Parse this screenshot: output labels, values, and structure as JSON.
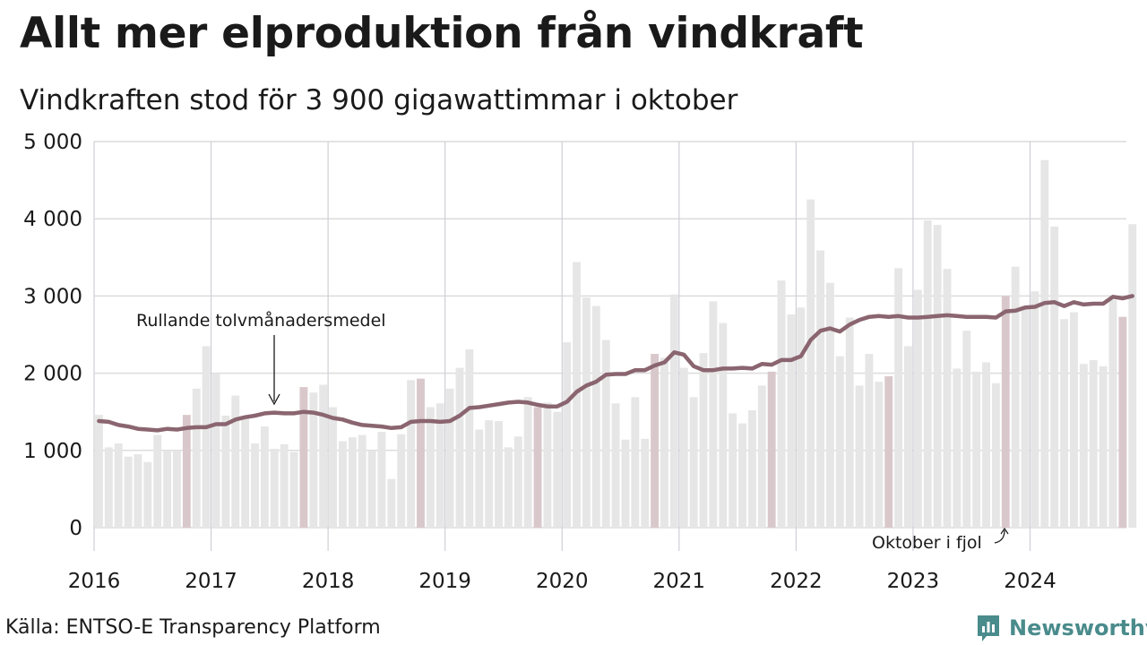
{
  "chart_data": {
    "type": "bar",
    "title": "Allt mer elproduktion från vindkraft",
    "subtitle": "Vindkraften stod för 3 900 gigawattimmar i oktober",
    "xlabel": "",
    "ylabel": "",
    "ylim": [
      0,
      5000
    ],
    "yticks": [
      0,
      1000,
      2000,
      3000,
      4000,
      5000
    ],
    "ytick_labels": [
      "0",
      "1 000",
      "2 000",
      "3 000",
      "4 000",
      "5 000"
    ],
    "xtick_labels": [
      "2016",
      "2017",
      "2018",
      "2019",
      "2020",
      "2021",
      "2022",
      "2023",
      "2024"
    ],
    "start": "2016-01",
    "grid": true,
    "highlight_month": "oktober",
    "colors": {
      "bar": "#e6e6e6",
      "bar_october": "#d9c8cb",
      "bar_latest": "#b5a1a6",
      "line": "#8a6570",
      "grid": "#dcdcdc",
      "brand": "#4a8b8c"
    },
    "series": [
      {
        "name": "Vindkraft",
        "type": "bar",
        "values": [
          1460,
          1040,
          1090,
          920,
          950,
          850,
          1200,
          1000,
          1000,
          1460,
          1800,
          2350,
          2000,
          1450,
          1710,
          1420,
          1090,
          1310,
          1020,
          1080,
          980,
          1820,
          1750,
          1850,
          1560,
          1120,
          1170,
          1200,
          1000,
          1240,
          630,
          1210,
          1910,
          1930,
          1560,
          1610,
          1800,
          2070,
          2310,
          1270,
          1390,
          1380,
          1040,
          1180,
          1690,
          1560,
          1620,
          1500,
          2400,
          3440,
          2980,
          2870,
          2430,
          1610,
          1140,
          1690,
          1150,
          2250,
          2200,
          3020,
          2070,
          1690,
          2260,
          2930,
          2650,
          1480,
          1350,
          1520,
          1840,
          2020,
          3200,
          2760,
          2850,
          4250,
          3590,
          3170,
          2220,
          2720,
          1840,
          2250,
          1890,
          1960,
          3360,
          2350,
          3080,
          3980,
          3920,
          3350,
          2060,
          2550,
          2020,
          2140,
          1870,
          3000,
          3380,
          2870,
          3060,
          4760,
          3900,
          2700,
          2790,
          2120,
          2170,
          2090,
          2950,
          2730,
          3930
        ]
      },
      {
        "name": "Rullande tolvmånadersmedel",
        "type": "line",
        "values": [
          1380,
          1370,
          1330,
          1310,
          1280,
          1270,
          1260,
          1280,
          1270,
          1290,
          1300,
          1300,
          1340,
          1340,
          1400,
          1430,
          1450,
          1480,
          1490,
          1480,
          1480,
          1500,
          1490,
          1460,
          1420,
          1400,
          1360,
          1330,
          1320,
          1310,
          1290,
          1300,
          1370,
          1380,
          1380,
          1370,
          1380,
          1450,
          1550,
          1560,
          1580,
          1600,
          1620,
          1630,
          1620,
          1590,
          1570,
          1570,
          1630,
          1760,
          1840,
          1890,
          1980,
          1990,
          1990,
          2040,
          2040,
          2100,
          2140,
          2270,
          2240,
          2090,
          2040,
          2040,
          2060,
          2060,
          2070,
          2060,
          2120,
          2110,
          2170,
          2170,
          2220,
          2430,
          2550,
          2580,
          2540,
          2630,
          2690,
          2730,
          2740,
          2730,
          2740,
          2720,
          2720,
          2730,
          2740,
          2750,
          2740,
          2730,
          2730,
          2730,
          2720,
          2800,
          2810,
          2850,
          2860,
          2910,
          2920,
          2870,
          2920,
          2890,
          2900,
          2900,
          2990,
          2970,
          3000
        ]
      }
    ],
    "annotations": [
      {
        "text": "Rullande tolvmånadersmedel"
      },
      {
        "text": "Oktober i fjol"
      }
    ]
  },
  "footer": {
    "source": "Källa: ENTSO-E Transparency Platform",
    "brand": "Newsworthy"
  }
}
